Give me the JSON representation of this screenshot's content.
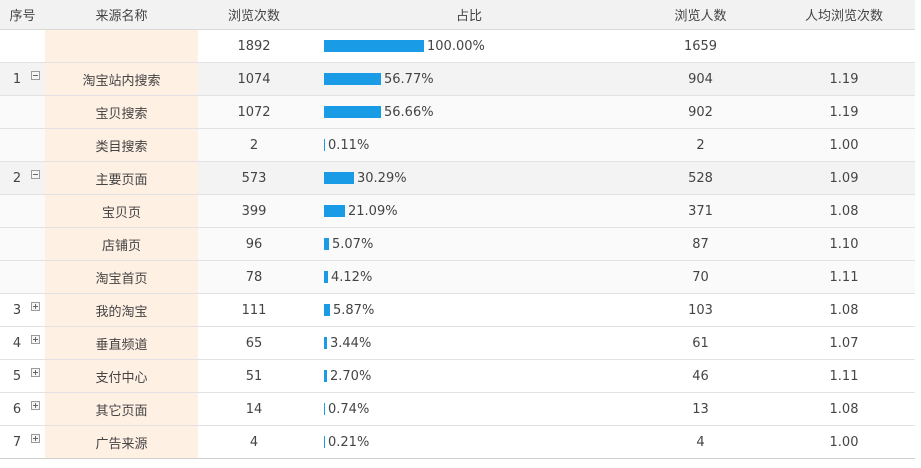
{
  "columns": [
    "序号",
    "来源名称",
    "浏览次数",
    "占比",
    "浏览人数",
    "人均浏览次数"
  ],
  "colors": {
    "bar": "#1a9be6",
    "source_col_bg": "#fff0e4",
    "header_bg": "#f2f2f2"
  },
  "rows": [
    {
      "index": "",
      "toggle": "none",
      "source": "",
      "views": "1892",
      "ratio": "100.00%",
      "ratio_value": 100.0,
      "visitors": "1659",
      "avg": "",
      "kind": "total"
    },
    {
      "index": "1",
      "toggle": "minus",
      "source": "淘宝站内搜索",
      "views": "1074",
      "ratio": "56.77%",
      "ratio_value": 56.77,
      "visitors": "904",
      "avg": "1.19",
      "kind": "grp"
    },
    {
      "index": "",
      "toggle": "none",
      "source": "宝贝搜索",
      "views": "1072",
      "ratio": "56.66%",
      "ratio_value": 56.66,
      "visitors": "902",
      "avg": "1.19",
      "kind": "sub"
    },
    {
      "index": "",
      "toggle": "none",
      "source": "类目搜索",
      "views": "2",
      "ratio": "0.11%",
      "ratio_value": 0.11,
      "visitors": "2",
      "avg": "1.00",
      "kind": "sub"
    },
    {
      "index": "2",
      "toggle": "minus",
      "source": "主要页面",
      "views": "573",
      "ratio": "30.29%",
      "ratio_value": 30.29,
      "visitors": "528",
      "avg": "1.09",
      "kind": "grp"
    },
    {
      "index": "",
      "toggle": "none",
      "source": "宝贝页",
      "views": "399",
      "ratio": "21.09%",
      "ratio_value": 21.09,
      "visitors": "371",
      "avg": "1.08",
      "kind": "sub"
    },
    {
      "index": "",
      "toggle": "none",
      "source": "店铺页",
      "views": "96",
      "ratio": "5.07%",
      "ratio_value": 5.07,
      "visitors": "87",
      "avg": "1.10",
      "kind": "sub"
    },
    {
      "index": "",
      "toggle": "none",
      "source": "淘宝首页",
      "views": "78",
      "ratio": "4.12%",
      "ratio_value": 4.12,
      "visitors": "70",
      "avg": "1.11",
      "kind": "sub"
    },
    {
      "index": "3",
      "toggle": "plus",
      "source": "我的淘宝",
      "views": "111",
      "ratio": "5.87%",
      "ratio_value": 5.87,
      "visitors": "103",
      "avg": "1.08",
      "kind": "row"
    },
    {
      "index": "4",
      "toggle": "plus",
      "source": "垂直频道",
      "views": "65",
      "ratio": "3.44%",
      "ratio_value": 3.44,
      "visitors": "61",
      "avg": "1.07",
      "kind": "row"
    },
    {
      "index": "5",
      "toggle": "plus",
      "source": "支付中心",
      "views": "51",
      "ratio": "2.70%",
      "ratio_value": 2.7,
      "visitors": "46",
      "avg": "1.11",
      "kind": "row"
    },
    {
      "index": "6",
      "toggle": "plus",
      "source": "其它页面",
      "views": "14",
      "ratio": "0.74%",
      "ratio_value": 0.74,
      "visitors": "13",
      "avg": "1.08",
      "kind": "row"
    },
    {
      "index": "7",
      "toggle": "plus",
      "source": "广告来源",
      "views": "4",
      "ratio": "0.21%",
      "ratio_value": 0.21,
      "visitors": "4",
      "avg": "1.00",
      "kind": "row"
    }
  ]
}
